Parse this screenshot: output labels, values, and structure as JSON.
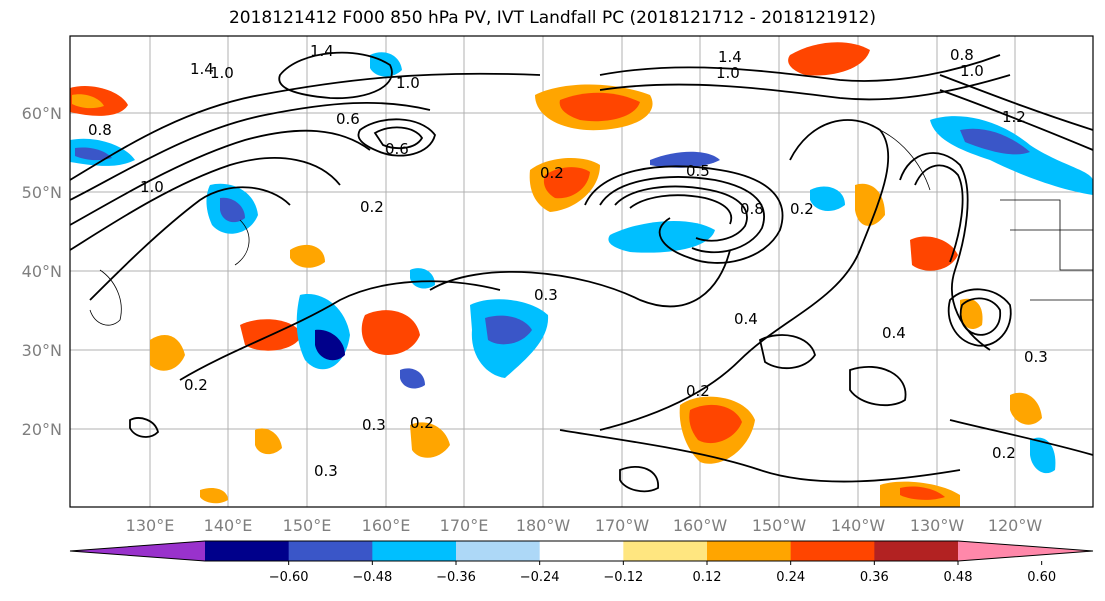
{
  "title": "2018121412 F000 850 hPa PV, IVT Landfall PC (2018121712 - 2018121912)",
  "map": {
    "lat_labels": [
      "60°N",
      "50°N",
      "40°N",
      "30°N",
      "20°N"
    ],
    "lon_labels": [
      "130°E",
      "140°E",
      "150°E",
      "160°E",
      "170°E",
      "180°W",
      "170°W",
      "160°W",
      "150°W",
      "140°W",
      "130°W",
      "120°W"
    ],
    "contour_labels": [
      "1.4",
      "1.4",
      "1.0",
      "1.0",
      "0.6",
      "0.6",
      "0.8",
      "1.0",
      "0.2",
      "0.2",
      "0.5",
      "0.8",
      "0.2",
      "0.3",
      "0.4",
      "0.4",
      "0.2",
      "0.3",
      "0.2",
      "0.3",
      "0.2",
      "0.2",
      "1.2",
      "1.0",
      "0.3",
      "1.4",
      "1.0",
      "0.8"
    ]
  },
  "colorbar": {
    "colors": [
      "#9932cc",
      "#00008b",
      "#3a56c8",
      "#00bfff",
      "#add8f7",
      "#ffffff",
      "#ffe680",
      "#ffa500",
      "#ff4500",
      "#b22222",
      "#ff88aa"
    ],
    "tick_labels": [
      "−0.60",
      "−0.48",
      "−0.36",
      "−0.24",
      "−0.12",
      "0.12",
      "0.24",
      "0.36",
      "0.48",
      "0.60"
    ]
  }
}
